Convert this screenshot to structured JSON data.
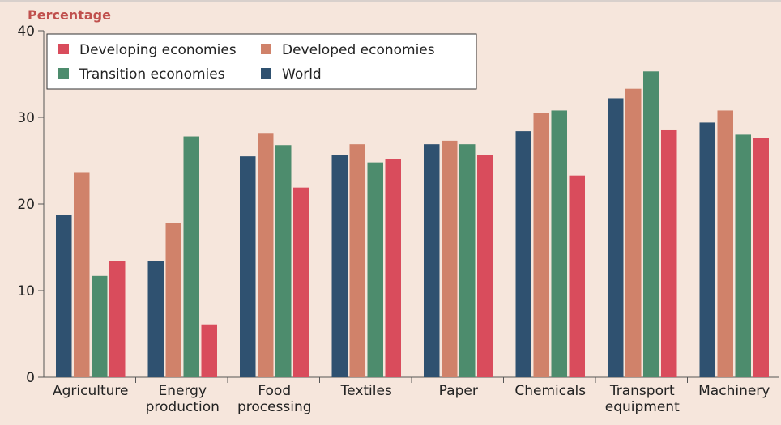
{
  "chart_data": {
    "type": "bar",
    "ylabel": "Percentage",
    "ylim": [
      0,
      40
    ],
    "yticks": [
      "0",
      "10",
      "20",
      "30",
      "40"
    ],
    "categories": [
      [
        "Agriculture"
      ],
      [
        "Energy",
        "production"
      ],
      [
        "Food",
        "processing"
      ],
      [
        "Textiles"
      ],
      [
        "Paper"
      ],
      [
        "Chemicals"
      ],
      [
        "Transport",
        "equipment"
      ],
      [
        "Machinery"
      ]
    ],
    "series": [
      {
        "name": "World",
        "color": "#2f5170",
        "values": [
          18.7,
          13.4,
          25.5,
          25.7,
          26.9,
          28.4,
          32.2,
          29.4
        ]
      },
      {
        "name": "Developed economies",
        "color": "#d0826a",
        "values": [
          23.6,
          17.8,
          28.2,
          26.9,
          27.3,
          30.5,
          33.3,
          30.8
        ]
      },
      {
        "name": "Transition economies",
        "color": "#4d8c6d",
        "values": [
          11.7,
          27.8,
          26.8,
          24.8,
          26.9,
          30.8,
          35.3,
          28.0
        ]
      },
      {
        "name": "Developing economies",
        "color": "#d94c5c",
        "values": [
          13.4,
          6.1,
          21.9,
          25.2,
          25.7,
          23.3,
          28.6,
          27.6
        ]
      }
    ],
    "legend": {
      "placement": "top-left",
      "items": [
        {
          "name": "Developing economies",
          "color": "#d94c5c"
        },
        {
          "name": "Developed economies",
          "color": "#d0826a"
        },
        {
          "name": "Transition economies",
          "color": "#4d8c6d"
        },
        {
          "name": "World",
          "color": "#2f5170"
        }
      ]
    },
    "grid": false
  },
  "style": {
    "background": "#f6e6dc",
    "axis_color": "#555555",
    "title_color": "#c0504d"
  }
}
